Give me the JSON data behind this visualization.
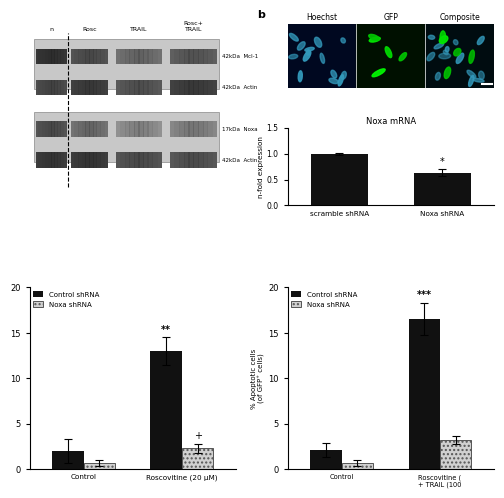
{
  "left_chart": {
    "groups": [
      "Control",
      "Roscovitine (20 μM)"
    ],
    "control_shrna": [
      2.0,
      13.0
    ],
    "noxa_shrna": [
      0.7,
      2.3
    ],
    "control_shrna_err": [
      1.3,
      1.5
    ],
    "noxa_shrna_err": [
      0.3,
      0.5
    ],
    "ylabel": "",
    "ylim": [
      0,
      20
    ],
    "yticks": [
      0,
      5,
      10,
      15,
      20
    ],
    "annotations": [
      "",
      "**"
    ],
    "noxa_annotations": [
      "",
      "+"
    ]
  },
  "right_chart": {
    "groups": [
      "Control",
      "Roscovitine (\n+ TRAIL (100"
    ],
    "control_shrna": [
      2.1,
      16.5
    ],
    "noxa_shrna": [
      0.7,
      3.2
    ],
    "control_shrna_err": [
      0.8,
      1.8
    ],
    "noxa_shrna_err": [
      0.3,
      0.4
    ],
    "ylabel": "% Apoptotic cells\n(of GFP⁺ cells)",
    "ylim": [
      0,
      20
    ],
    "yticks": [
      0,
      5,
      10,
      15,
      20
    ],
    "annotations": [
      "",
      "***"
    ],
    "noxa_annotations": [
      "",
      ""
    ]
  },
  "noxa_mrna": {
    "categories": [
      "scramble shRNA",
      "Noxa shRNA"
    ],
    "values": [
      1.0,
      0.63
    ],
    "errors": [
      0.02,
      0.07
    ],
    "title": "Noxa mRNA",
    "ylabel": "n-fold expression",
    "ylim": [
      0.0,
      1.5
    ],
    "yticks": [
      0.0,
      0.5,
      1.0,
      1.5
    ],
    "annotations": [
      "",
      "*"
    ]
  },
  "wb": {
    "col_labels": [
      "n",
      "Rosc",
      "TRAIL",
      "Rosc+\nTRAIL"
    ],
    "row_labels": [
      "42kDa  Mcl-1",
      "42kDa  Actin",
      "17kDa  Noxa",
      "42kDa  Actin"
    ]
  },
  "colors": {
    "control_shrna": "#111111",
    "noxa_shrna_face": "#d0d0d0",
    "noxa_shrna_edge": "#555555",
    "background": "#ffffff"
  }
}
